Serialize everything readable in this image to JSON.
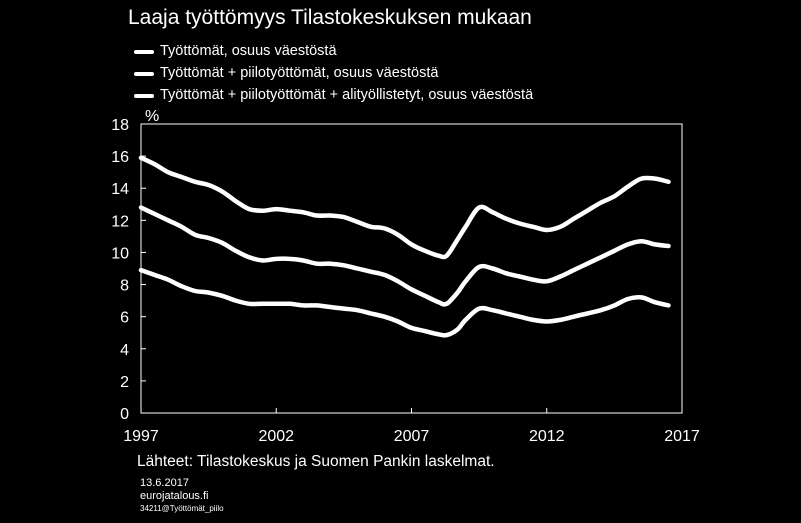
{
  "title": "Laaja työttömyys Tilastokeskuksen mukaan",
  "legend": [
    "Työttömät, osuus väestöstä",
    "Työttömät + piilotyöttömät, osuus väestöstä",
    "Työttömät + piilotyöttömät + alityöllistetyt, osuus väestöstä"
  ],
  "source": "Lähteet: Tilastokeskus ja Suomen Pankin laskelmat.",
  "footer": {
    "date": "13.6.2017",
    "site": "eurojatalous.fi",
    "code": "34211@Työttömät_piilo"
  },
  "colors": {
    "background": "#000000",
    "foreground": "#ffffff"
  },
  "chart_data": {
    "type": "line",
    "ylabel": "%",
    "xlim": [
      1997,
      2017
    ],
    "ylim": [
      0,
      18
    ],
    "xticks": [
      "1997",
      "2002",
      "2007",
      "2012",
      "2017"
    ],
    "yticks": [
      "0",
      "2",
      "4",
      "6",
      "8",
      "10",
      "12",
      "14",
      "16",
      "18"
    ],
    "grid": false,
    "legend_position": "top-left",
    "series": [
      {
        "name": "Työttömät, osuus väestöstä",
        "x": [
          1997.0,
          1997.5,
          1998.0,
          1998.5,
          1999.0,
          1999.5,
          2000.0,
          2000.5,
          2001.0,
          2001.5,
          2002.0,
          2002.5,
          2003.0,
          2003.5,
          2004.0,
          2004.5,
          2005.0,
          2005.5,
          2006.0,
          2006.5,
          2007.0,
          2007.5,
          2008.0,
          2008.3,
          2008.7,
          2009.0,
          2009.5,
          2010.0,
          2010.5,
          2011.0,
          2011.5,
          2012.0,
          2012.5,
          2013.0,
          2013.5,
          2014.0,
          2014.5,
          2015.0,
          2015.5,
          2016.0,
          2016.5
        ],
        "y": [
          8.9,
          8.6,
          8.3,
          7.9,
          7.6,
          7.5,
          7.3,
          7.0,
          6.8,
          6.8,
          6.8,
          6.8,
          6.7,
          6.7,
          6.6,
          6.5,
          6.4,
          6.2,
          6.0,
          5.7,
          5.3,
          5.1,
          4.9,
          4.85,
          5.2,
          5.8,
          6.5,
          6.4,
          6.2,
          6.0,
          5.8,
          5.7,
          5.8,
          6.0,
          6.2,
          6.4,
          6.7,
          7.1,
          7.2,
          6.9,
          6.7
        ]
      },
      {
        "name": "Työttömät + piilotyöttömät, osuus väestöstä",
        "x": [
          1997.0,
          1997.5,
          1998.0,
          1998.5,
          1999.0,
          1999.5,
          2000.0,
          2000.5,
          2001.0,
          2001.5,
          2002.0,
          2002.5,
          2003.0,
          2003.5,
          2004.0,
          2004.5,
          2005.0,
          2005.5,
          2006.0,
          2006.5,
          2007.0,
          2007.5,
          2008.0,
          2008.3,
          2008.7,
          2009.0,
          2009.5,
          2010.0,
          2010.5,
          2011.0,
          2011.5,
          2012.0,
          2012.5,
          2013.0,
          2013.5,
          2014.0,
          2014.5,
          2015.0,
          2015.5,
          2016.0,
          2016.5
        ],
        "y": [
          12.8,
          12.4,
          12.0,
          11.6,
          11.1,
          10.9,
          10.6,
          10.1,
          9.7,
          9.5,
          9.6,
          9.6,
          9.5,
          9.3,
          9.3,
          9.2,
          9.0,
          8.8,
          8.6,
          8.2,
          7.7,
          7.3,
          6.9,
          6.8,
          7.5,
          8.2,
          9.1,
          9.0,
          8.7,
          8.5,
          8.3,
          8.2,
          8.5,
          8.9,
          9.3,
          9.7,
          10.1,
          10.5,
          10.7,
          10.5,
          10.4
        ]
      },
      {
        "name": "Työttömät + piilotyöttömät + alityöllistetyt, osuus väestöstä",
        "x": [
          1997.0,
          1997.5,
          1998.0,
          1998.5,
          1999.0,
          1999.5,
          2000.0,
          2000.5,
          2001.0,
          2001.5,
          2002.0,
          2002.5,
          2003.0,
          2003.5,
          2004.0,
          2004.5,
          2005.0,
          2005.5,
          2006.0,
          2006.5,
          2007.0,
          2007.5,
          2008.0,
          2008.3,
          2008.7,
          2009.0,
          2009.5,
          2010.0,
          2010.5,
          2011.0,
          2011.5,
          2012.0,
          2012.5,
          2013.0,
          2013.5,
          2014.0,
          2014.5,
          2015.0,
          2015.5,
          2016.0,
          2016.5
        ],
        "y": [
          15.9,
          15.5,
          15.0,
          14.7,
          14.4,
          14.2,
          13.8,
          13.2,
          12.7,
          12.6,
          12.7,
          12.6,
          12.5,
          12.3,
          12.3,
          12.2,
          11.9,
          11.6,
          11.5,
          11.1,
          10.5,
          10.1,
          9.8,
          9.8,
          10.8,
          11.6,
          12.8,
          12.5,
          12.1,
          11.8,
          11.6,
          11.4,
          11.6,
          12.1,
          12.6,
          13.1,
          13.5,
          14.1,
          14.6,
          14.6,
          14.4
        ]
      }
    ]
  }
}
